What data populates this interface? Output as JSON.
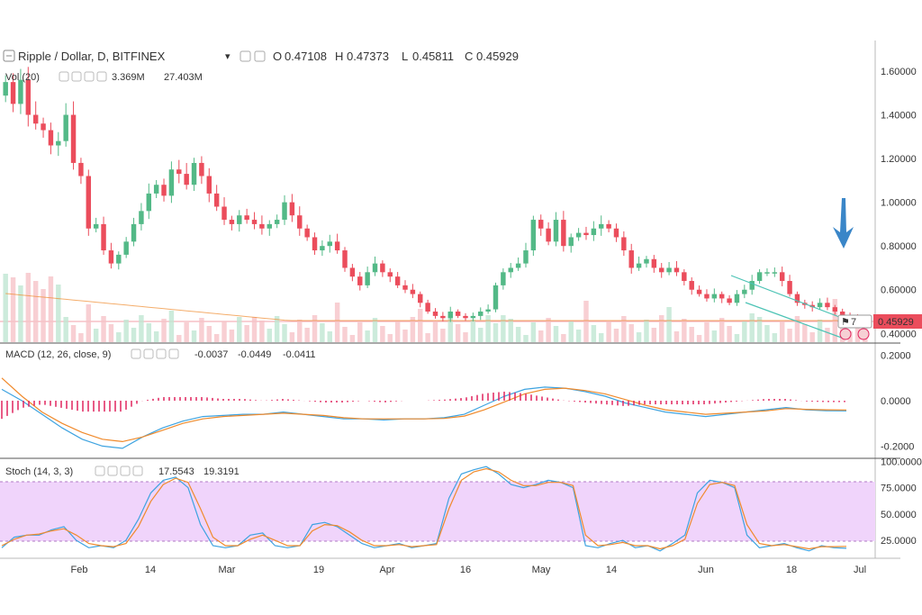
{
  "header": {
    "symbol": "Ripple / Dollar, D, BITFINEX",
    "o_label": "O",
    "o_value": "0.47108",
    "h_label": "H",
    "h_value": "0.47373",
    "l_label": "L",
    "l_value": "0.45811",
    "c_label": "C",
    "c_value": "0.45929"
  },
  "vol": {
    "title": "Vol (20)",
    "v1": "3.369M",
    "v2": "27.403M"
  },
  "macd": {
    "title": "MACD (12, 26, close, 9)",
    "v_hist": "-0.0037",
    "v_macd": "-0.0449",
    "v_signal": "-0.0411"
  },
  "stoch": {
    "title": "Stoch (14, 3, 3)",
    "v_k": "17.5543",
    "v_d": "19.3191"
  },
  "price_badge": "0.45929",
  "badge_num": "7",
  "colors": {
    "up": "#53b987",
    "down": "#eb4d5c",
    "up_vol": "#bfe6d2",
    "down_vol": "#f6c3c8",
    "macd_line": "#3ea3e0",
    "signal_line": "#f08a2c",
    "hist": "#e0245e",
    "stoch_fill": "#f0d4fb",
    "channel": "#4cc3b5",
    "arrow": "#3a86c8"
  },
  "chart_data": [
    {
      "type": "candlestick",
      "title": "Ripple / Dollar, D, BITFINEX",
      "xlabel": "",
      "ylabel": "",
      "x_ticks": [
        "Feb",
        "14",
        "Mar",
        "19",
        "Apr",
        "16",
        "May",
        "14",
        "Jun",
        "18",
        "Jul"
      ],
      "y_ticks": [
        "0.40000",
        "0.60000",
        "0.80000",
        "1.00000",
        "1.20000",
        "1.40000",
        "1.60000"
      ],
      "ylim": [
        0.36,
        1.74
      ],
      "close_series": [
        1.55,
        1.45,
        1.56,
        1.4,
        1.36,
        1.33,
        1.26,
        1.28,
        1.4,
        1.18,
        1.12,
        0.88,
        0.9,
        0.78,
        0.72,
        0.76,
        0.82,
        0.9,
        0.96,
        1.04,
        1.08,
        1.03,
        1.15,
        1.13,
        1.08,
        1.18,
        1.12,
        1.04,
        0.98,
        0.92,
        0.9,
        0.94,
        0.92,
        0.9,
        0.88,
        0.9,
        0.92,
        1.0,
        0.94,
        0.88,
        0.84,
        0.78,
        0.8,
        0.82,
        0.78,
        0.7,
        0.66,
        0.62,
        0.68,
        0.72,
        0.68,
        0.66,
        0.62,
        0.6,
        0.58,
        0.54,
        0.5,
        0.48,
        0.47,
        0.5,
        0.48,
        0.47,
        0.48,
        0.5,
        0.51,
        0.62,
        0.68,
        0.7,
        0.72,
        0.78,
        0.92,
        0.88,
        0.82,
        0.92,
        0.8,
        0.84,
        0.86,
        0.85,
        0.88,
        0.9,
        0.88,
        0.84,
        0.78,
        0.7,
        0.72,
        0.74,
        0.7,
        0.68,
        0.7,
        0.68,
        0.64,
        0.6,
        0.58,
        0.56,
        0.58,
        0.56,
        0.54,
        0.58,
        0.6,
        0.64,
        0.68,
        0.68,
        0.68,
        0.64,
        0.58,
        0.54,
        0.53,
        0.52,
        0.54,
        0.52,
        0.5,
        0.48,
        0.47,
        0.46,
        0.45929
      ],
      "volume_note": "Volume bars shown beneath candles"
    },
    {
      "type": "line",
      "title": "MACD (12, 26, close, 9)",
      "y_ticks": [
        "-0.2000",
        "0.0000",
        "0.2000"
      ],
      "ylim": [
        -0.25,
        0.25
      ],
      "series": [
        {
          "name": "MACD",
          "values": [
            0.05,
            0.0,
            -0.06,
            -0.12,
            -0.17,
            -0.2,
            -0.21,
            -0.16,
            -0.12,
            -0.09,
            -0.07,
            -0.065,
            -0.06,
            -0.06,
            -0.05,
            -0.06,
            -0.07,
            -0.08,
            -0.08,
            -0.085,
            -0.08,
            -0.08,
            -0.075,
            -0.06,
            -0.02,
            0.02,
            0.05,
            0.06,
            0.055,
            0.04,
            0.02,
            -0.01,
            -0.03,
            -0.05,
            -0.06,
            -0.07,
            -0.06,
            -0.05,
            -0.04,
            -0.03,
            -0.04,
            -0.044,
            -0.045
          ]
        },
        {
          "name": "Signal",
          "values": [
            0.1,
            0.02,
            -0.05,
            -0.1,
            -0.14,
            -0.17,
            -0.18,
            -0.16,
            -0.13,
            -0.1,
            -0.08,
            -0.07,
            -0.065,
            -0.06,
            -0.055,
            -0.06,
            -0.065,
            -0.075,
            -0.08,
            -0.08,
            -0.08,
            -0.08,
            -0.078,
            -0.068,
            -0.04,
            -0.005,
            0.03,
            0.05,
            0.055,
            0.045,
            0.03,
            0.005,
            -0.02,
            -0.04,
            -0.05,
            -0.06,
            -0.055,
            -0.05,
            -0.045,
            -0.035,
            -0.038,
            -0.04,
            -0.041
          ]
        }
      ]
    },
    {
      "type": "line",
      "title": "Stoch (14, 3, 3)",
      "y_ticks": [
        "25.0000",
        "50.0000",
        "75.0000",
        "100.0000"
      ],
      "ylim": [
        8,
        102
      ],
      "series": [
        {
          "name": "%K",
          "values": [
            18,
            28,
            30,
            30,
            35,
            38,
            25,
            18,
            20,
            18,
            25,
            45,
            70,
            82,
            85,
            75,
            40,
            20,
            18,
            20,
            30,
            32,
            20,
            18,
            20,
            40,
            42,
            38,
            30,
            22,
            18,
            20,
            22,
            18,
            20,
            22,
            65,
            88,
            92,
            95,
            88,
            78,
            75,
            78,
            82,
            80,
            75,
            20,
            18,
            22,
            25,
            18,
            20,
            15,
            22,
            30,
            70,
            82,
            80,
            75,
            30,
            18,
            20,
            22,
            18,
            15,
            20,
            18,
            17.5
          ]
        },
        {
          "name": "%D",
          "values": [
            20,
            26,
            30,
            31,
            34,
            36,
            30,
            22,
            20,
            19,
            22,
            38,
            62,
            78,
            84,
            80,
            55,
            28,
            20,
            20,
            26,
            30,
            25,
            20,
            20,
            34,
            40,
            39,
            33,
            25,
            20,
            20,
            21,
            19,
            20,
            21,
            55,
            82,
            90,
            93,
            90,
            82,
            77,
            77,
            80,
            80,
            77,
            30,
            20,
            21,
            23,
            20,
            20,
            17,
            20,
            26,
            60,
            78,
            80,
            77,
            40,
            22,
            20,
            21,
            19,
            17,
            19,
            19,
            19.3
          ]
        }
      ]
    }
  ]
}
